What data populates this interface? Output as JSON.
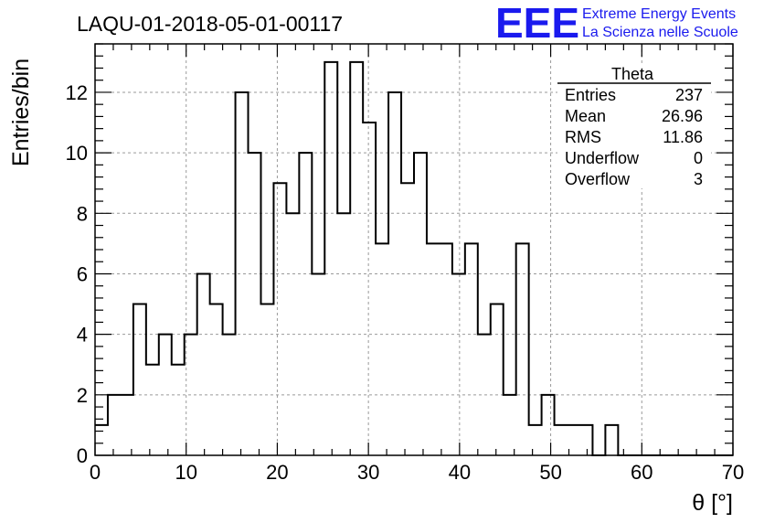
{
  "chart_data": {
    "type": "histogram",
    "title": "LAQU-01-2018-05-01-00117",
    "xlabel": "θ [°]",
    "ylabel": "Entries/bin",
    "xlim": [
      0,
      70
    ],
    "ylim": [
      0,
      13.6
    ],
    "bin_width": 1.4,
    "x_ticks": [
      0,
      10,
      20,
      30,
      40,
      50,
      60,
      70
    ],
    "y_ticks": [
      0,
      2,
      4,
      6,
      8,
      10,
      12
    ],
    "grid": true,
    "bin_counts": [
      1,
      2,
      2,
      5,
      3,
      4,
      3,
      4,
      6,
      5,
      4,
      12,
      10,
      5,
      9,
      8,
      10,
      6,
      13,
      8,
      13,
      11,
      7,
      12,
      9,
      10,
      7,
      7,
      6,
      7,
      4,
      5,
      2,
      7,
      1,
      2,
      1,
      1,
      1,
      0,
      1,
      0,
      0,
      0,
      0,
      0,
      0,
      0,
      0,
      0
    ],
    "stats_box": {
      "name": "Theta",
      "rows": [
        {
          "label": "Entries",
          "value": "237"
        },
        {
          "label": "Mean",
          "value": "26.96"
        },
        {
          "label": "RMS",
          "value": "11.86"
        },
        {
          "label": "Underflow",
          "value": "0"
        },
        {
          "label": "Overflow",
          "value": "3"
        }
      ]
    },
    "logo": {
      "mark": "EEE",
      "line1": "Extreme Energy Events",
      "line2": "La Scienza nelle Scuole",
      "color": "#1a1aee"
    },
    "line_color": "#000000"
  }
}
